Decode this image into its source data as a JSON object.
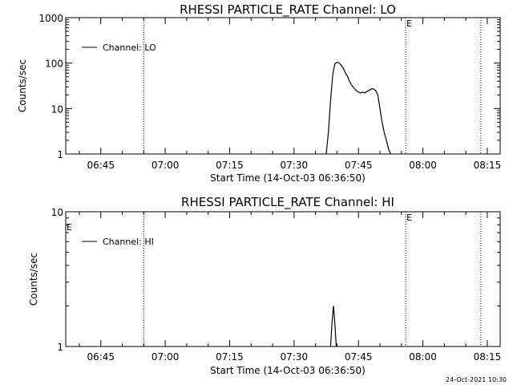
{
  "chart_data": [
    {
      "type": "line",
      "title": "RHESSI PARTICLE_RATE Channel: LO",
      "xlabel": "Start Time (14-Oct-03 06:36:50)",
      "ylabel": "Counts/sec",
      "yscale": "log",
      "ylim": [
        1,
        1000
      ],
      "ytick_labels": [
        "1",
        "10",
        "100",
        "1000"
      ],
      "xlim": [
        "06:36:50",
        "08:18:00"
      ],
      "xtick_labels": [
        "06:45",
        "07:00",
        "07:15",
        "07:30",
        "07:45",
        "08:00",
        "08:15"
      ],
      "legend": {
        "label": "Channel: LO",
        "placement": "top-left"
      },
      "markers": [
        {
          "time": "06:55:00",
          "style": "dotted"
        },
        {
          "time": "07:56:00",
          "style": "dotted",
          "label": "E"
        },
        {
          "time": "08:13:30",
          "style": "dotted"
        }
      ],
      "series": [
        {
          "name": "Channel: LO",
          "x": [
            "07:37:30",
            "07:38:00",
            "07:38:30",
            "07:39:00",
            "07:39:30",
            "07:40:00",
            "07:40:30",
            "07:41:00",
            "07:41:30",
            "07:42:00",
            "07:42:30",
            "07:43:00",
            "07:43:30",
            "07:44:00",
            "07:44:30",
            "07:45:00",
            "07:45:30",
            "07:46:00",
            "07:46:30",
            "07:47:00",
            "07:47:30",
            "07:48:00",
            "07:48:30",
            "07:49:00",
            "07:49:30",
            "07:50:00",
            "07:50:30",
            "07:51:00",
            "07:51:30",
            "07:52:00",
            "07:52:30"
          ],
          "y": [
            1,
            3,
            15,
            55,
            95,
            105,
            100,
            90,
            75,
            60,
            50,
            38,
            32,
            28,
            25,
            23,
            22,
            23,
            22,
            24,
            25,
            27,
            27,
            25,
            20,
            10,
            5,
            3,
            2,
            1.3,
            1
          ]
        }
      ]
    },
    {
      "type": "line",
      "title": "RHESSI PARTICLE_RATE Channel: HI",
      "xlabel": "Start Time (14-Oct-03 06:36:50)",
      "ylabel": "Counts/sec",
      "yscale": "log",
      "ylim": [
        1,
        10
      ],
      "ytick_labels": [
        "1",
        "10"
      ],
      "xlim": [
        "06:36:50",
        "08:18:00"
      ],
      "xtick_labels": [
        "06:45",
        "07:00",
        "07:15",
        "07:30",
        "07:45",
        "08:00",
        "08:15"
      ],
      "legend": {
        "label": "Channel: HI",
        "placement": "top-left"
      },
      "markers": [
        {
          "time": "06:55:00",
          "style": "dotted"
        },
        {
          "time": "07:56:00",
          "style": "dotted",
          "label": "E"
        },
        {
          "time": "08:13:30",
          "style": "dotted"
        }
      ],
      "flags": [
        {
          "time": "06:37:00",
          "label": "E"
        }
      ],
      "series": [
        {
          "name": "Channel: HI",
          "x": [
            "07:38:30",
            "07:38:50",
            "07:39:10",
            "07:39:30",
            "07:39:50"
          ],
          "y": [
            1,
            1.5,
            2,
            1.5,
            1
          ]
        }
      ]
    }
  ],
  "footer": {
    "timestamp": "24-Oct-2021 10:30"
  }
}
